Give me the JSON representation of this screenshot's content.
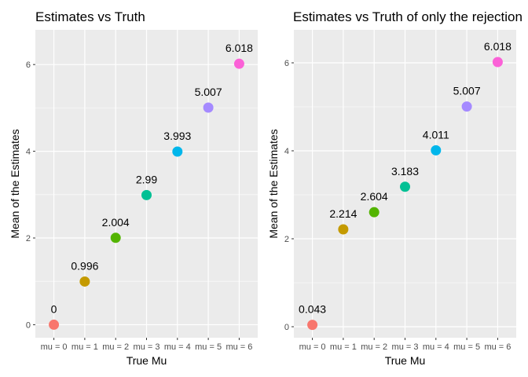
{
  "chart_data": [
    {
      "type": "scatter",
      "title": "Estimates vs Truth",
      "xlabel": "True Mu",
      "ylabel": "Mean of the Estimates",
      "categories": [
        "mu = 0",
        "mu = 1",
        "mu = 2",
        "mu = 3",
        "mu = 4",
        "mu = 5",
        "mu = 6"
      ],
      "values": [
        0,
        0.996,
        2.004,
        2.99,
        3.993,
        5.007,
        6.018
      ],
      "labels": [
        "0",
        "0.996",
        "2.004",
        "2.99",
        "3.993",
        "5.007",
        "6.018"
      ],
      "colors": [
        "#F8766D",
        "#C49A00",
        "#53B400",
        "#00C094",
        "#00B6EB",
        "#A58AFF",
        "#FB61D7"
      ],
      "yticks": [
        0,
        2,
        4,
        6
      ],
      "ylim": [
        -0.3,
        6.8
      ],
      "grid": true,
      "legend": "none"
    },
    {
      "type": "scatter",
      "title": "Estimates vs Truth of only the rejection",
      "xlabel": "True Mu",
      "ylabel": "Mean of the Estimates",
      "categories": [
        "mu = 0",
        "mu = 1",
        "mu = 2",
        "mu = 3",
        "mu = 4",
        "mu = 5",
        "mu = 6"
      ],
      "values": [
        0.043,
        2.214,
        2.604,
        3.183,
        4.011,
        5.007,
        6.018
      ],
      "labels": [
        "0.043",
        "2.214",
        "2.604",
        "3.183",
        "4.011",
        "5.007",
        "6.018"
      ],
      "colors": [
        "#F8766D",
        "#C49A00",
        "#53B400",
        "#00C094",
        "#00B6EB",
        "#A58AFF",
        "#FB61D7"
      ],
      "yticks": [
        0,
        2,
        4,
        6
      ],
      "ylim": [
        -0.25,
        6.75
      ],
      "grid": true,
      "legend": "none"
    }
  ]
}
